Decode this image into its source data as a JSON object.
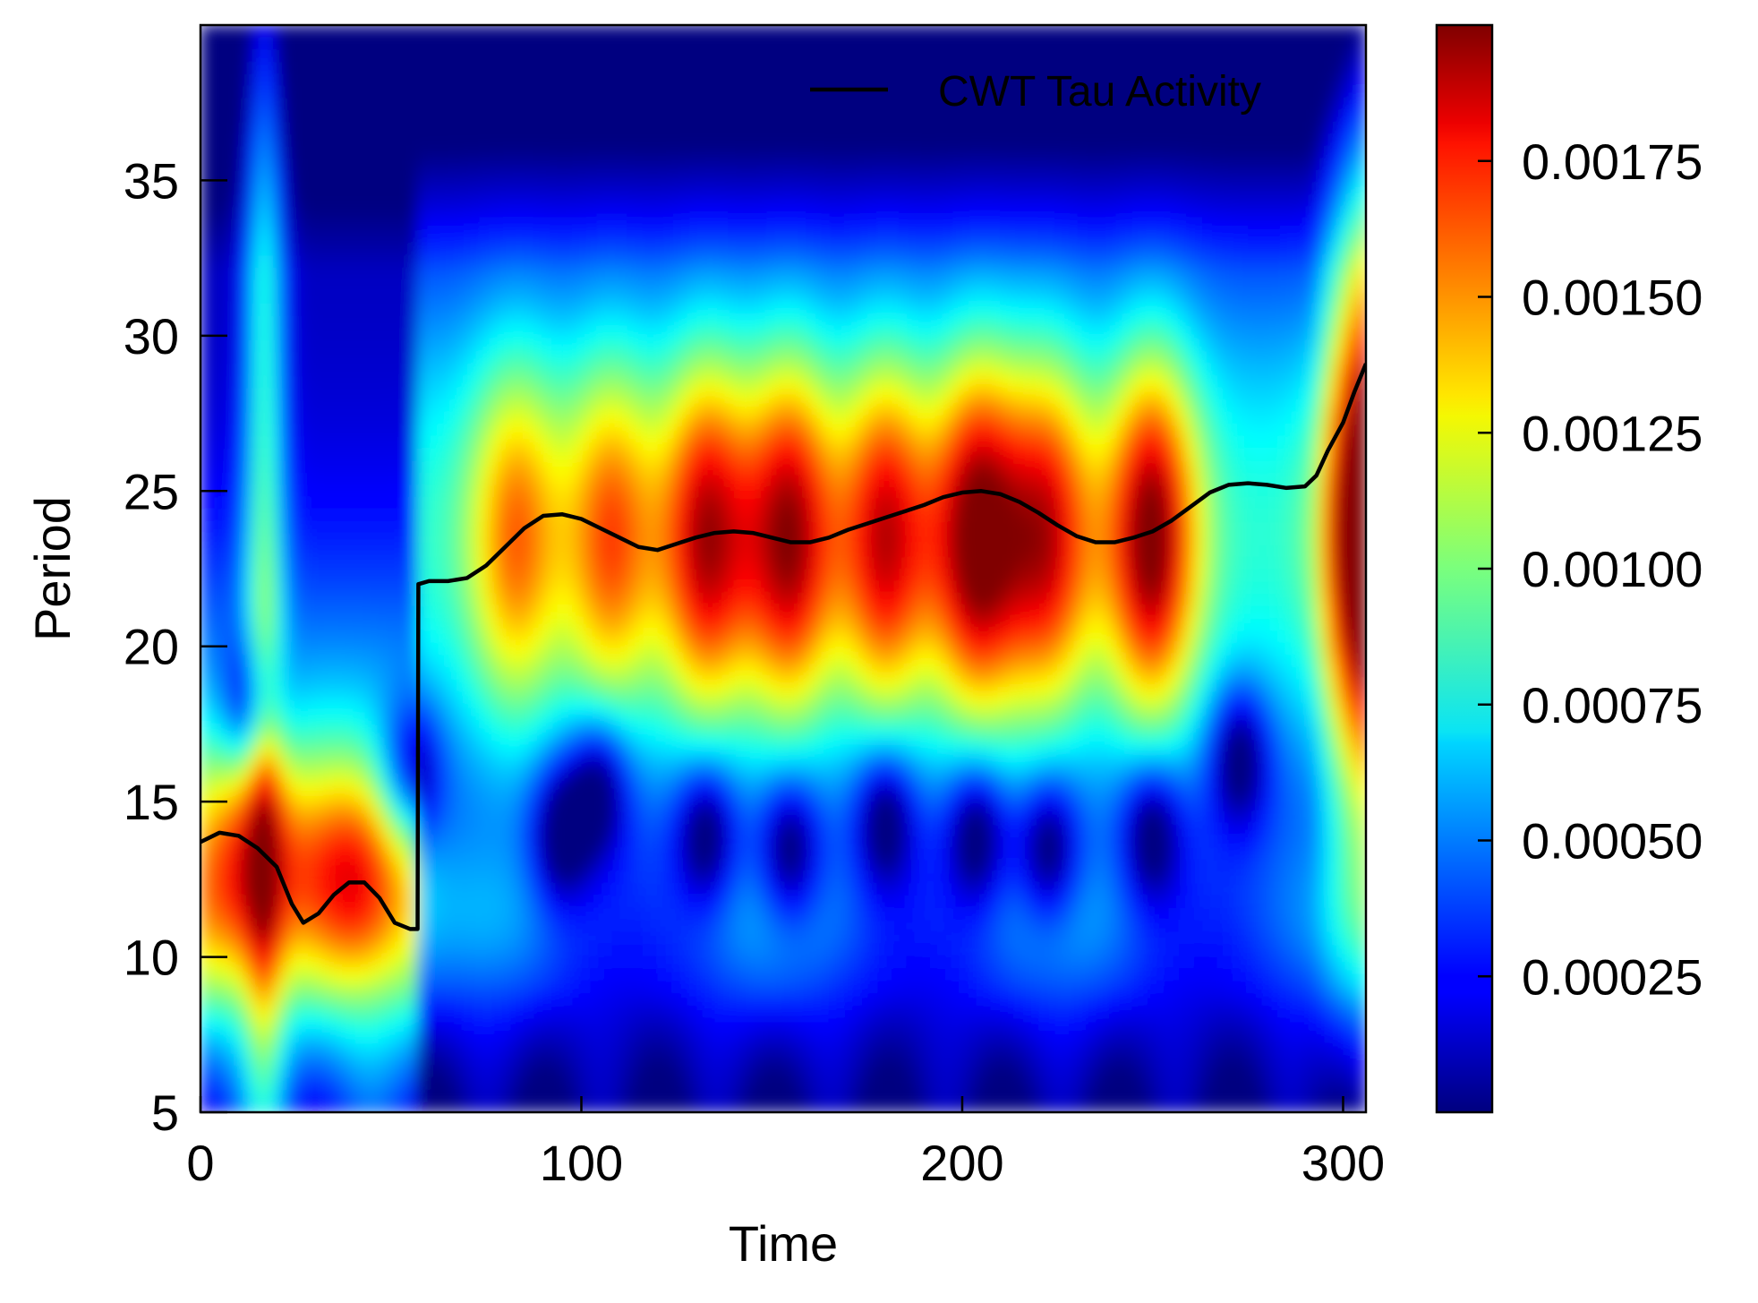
{
  "chart_data": {
    "type": "heatmap",
    "title": "",
    "xlabel": "Time",
    "ylabel": "Period",
    "xlim": [
      0,
      306
    ],
    "ylim": [
      5,
      40
    ],
    "x_ticks": [
      0,
      100,
      200,
      300
    ],
    "x_tick_labels": [
      "0",
      "100",
      "200",
      "300"
    ],
    "y_ticks": [
      5,
      10,
      15,
      20,
      25,
      30,
      35
    ],
    "y_tick_labels": [
      "5",
      "10",
      "15",
      "20",
      "25",
      "30",
      "35"
    ],
    "colormap": "jet",
    "colorbar": {
      "vmin": 0.0,
      "vmax": 0.002,
      "ticks": [
        0.00025,
        0.0005,
        0.00075,
        0.001,
        0.00125,
        0.0015,
        0.00175
      ],
      "tick_labels": [
        "0.00025",
        "0.00050",
        "0.00075",
        "0.00100",
        "0.00125",
        "0.00150",
        "0.00175"
      ]
    },
    "heatmap_features": {
      "main_band_period": 23.5,
      "main_band_peaks": [
        {
          "time": 83,
          "power": 0.00145
        },
        {
          "time": 108,
          "power": 0.0015
        },
        {
          "time": 133,
          "power": 0.0018
        },
        {
          "time": 155,
          "power": 0.00185
        },
        {
          "time": 180,
          "power": 0.00175
        },
        {
          "time": 204,
          "power": 0.00195
        },
        {
          "time": 223,
          "power": 0.0017
        },
        {
          "time": 250,
          "power": 0.00195
        },
        {
          "time": 306,
          "power": 0.0015
        }
      ],
      "early_band": [
        {
          "time": 12,
          "period": 13.5,
          "power": 0.0013
        },
        {
          "time": 40,
          "period": 12.5,
          "power": 0.0015
        }
      ]
    },
    "series": [
      {
        "name": "CWT Tau Activity",
        "color": "#000000",
        "x": [
          0,
          5,
          10,
          15,
          20,
          24,
          27,
          31,
          35,
          39,
          43,
          47,
          51,
          55,
          57,
          57.2,
          60,
          65,
          70,
          75,
          80,
          85,
          90,
          95,
          100,
          105,
          110,
          115,
          120,
          125,
          130,
          135,
          140,
          145,
          150,
          155,
          160,
          165,
          170,
          175,
          180,
          185,
          190,
          195,
          200,
          205,
          210,
          215,
          220,
          225,
          230,
          235,
          240,
          245,
          250,
          255,
          260,
          265,
          270,
          275,
          280,
          285,
          290,
          293,
          296,
          300,
          303,
          306
        ],
        "y": [
          13.7,
          14.0,
          13.9,
          13.5,
          12.9,
          11.7,
          11.1,
          11.4,
          12.0,
          12.4,
          12.4,
          11.9,
          11.1,
          10.9,
          10.9,
          22.0,
          22.1,
          22.1,
          22.2,
          22.6,
          23.2,
          23.8,
          24.2,
          24.25,
          24.1,
          23.8,
          23.5,
          23.2,
          23.1,
          23.3,
          23.5,
          23.65,
          23.7,
          23.65,
          23.5,
          23.35,
          23.35,
          23.5,
          23.75,
          23.95,
          24.15,
          24.35,
          24.55,
          24.8,
          24.95,
          25.0,
          24.9,
          24.65,
          24.3,
          23.9,
          23.55,
          23.35,
          23.35,
          23.5,
          23.7,
          24.05,
          24.5,
          24.95,
          25.2,
          25.25,
          25.2,
          25.1,
          25.15,
          25.5,
          26.3,
          27.2,
          28.2,
          29.1
        ]
      }
    ],
    "legend": {
      "position": "top-right",
      "entries": [
        "CWT Tau Activity"
      ]
    },
    "grid": false
  }
}
